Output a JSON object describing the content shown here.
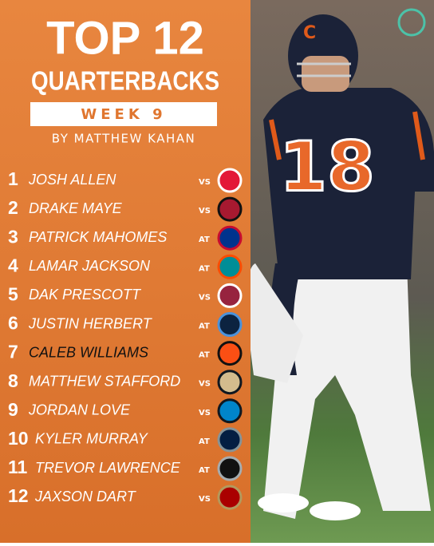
{
  "header": {
    "title": "TOP 12",
    "subtitle": "QUARTERBACKS",
    "week": "WEEK 9",
    "byline": "BY MATTHEW KAHAN"
  },
  "rankings": [
    {
      "rank": 1,
      "name": "JOSH ALLEN",
      "site": "VS"
    },
    {
      "rank": 2,
      "name": "DRAKE MAYE",
      "site": "VS"
    },
    {
      "rank": 3,
      "name": "PATRICK MAHOMES",
      "site": "AT"
    },
    {
      "rank": 4,
      "name": "LAMAR JACKSON",
      "site": "AT"
    },
    {
      "rank": 5,
      "name": "DAK PRESCOTT",
      "site": "VS"
    },
    {
      "rank": 6,
      "name": "JUSTIN HERBERT",
      "site": "AT"
    },
    {
      "rank": 7,
      "name": "CALEB WILLIAMS",
      "site": "AT"
    },
    {
      "rank": 8,
      "name": "MATTHEW STAFFORD",
      "site": "VS"
    },
    {
      "rank": 9,
      "name": "JORDAN LOVE",
      "site": "VS"
    },
    {
      "rank": 10,
      "name": "KYLER MURRAY",
      "site": "AT"
    },
    {
      "rank": 11,
      "name": "TREVOR LAWRENCE",
      "site": "AT"
    },
    {
      "rank": 12,
      "name": "JAXSON DART",
      "site": "VS"
    }
  ],
  "photo": {
    "jersey_number": "18"
  }
}
